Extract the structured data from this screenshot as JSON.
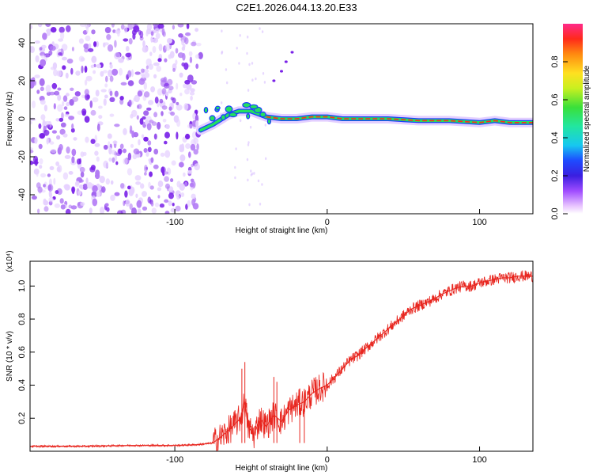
{
  "title": "C2E1.2026.044.13.20.E33",
  "colors": {
    "snr_line": "#e8261f",
    "signal_core": "#ff2a1a",
    "signal_mid": "#22e060",
    "signal_edge": "#1a3cff",
    "noise": "#7a22e8"
  },
  "chart_data": [
    {
      "type": "heatmap",
      "title": "C2E1.2026.044.13.20.E33",
      "xlabel": "Height of straight line (km)",
      "ylabel": "Frequency (Hz)",
      "xlim": [
        -195,
        135
      ],
      "ylim": [
        -50,
        50
      ],
      "xticks": [
        -100,
        0,
        100
      ],
      "xtick_labels": [
        "-100",
        "0",
        "100"
      ],
      "yticks": [
        -40,
        -20,
        0,
        20,
        40
      ],
      "ytick_labels": [
        "-40",
        "-20",
        "0",
        "20",
        "40"
      ],
      "colorbar": {
        "label": "Normalized spectral amplitude",
        "range": [
          0,
          1
        ],
        "ticks": [
          0.0,
          0.2,
          0.4,
          0.6,
          0.8
        ],
        "tick_labels": [
          "0.0",
          "0.2",
          "0.4",
          "0.6",
          "0.8"
        ]
      },
      "noise_region": {
        "x_start": -195,
        "x_end": -83
      },
      "signal_track": {
        "x": [
          -83,
          -75,
          -65,
          -58,
          -50,
          -40,
          -30,
          -20,
          -10,
          0,
          10,
          20,
          40,
          60,
          80,
          100,
          110,
          120,
          135
        ],
        "freq": [
          -6,
          -3,
          2,
          4,
          4,
          1,
          0,
          0,
          1,
          1,
          0,
          0,
          0,
          -1,
          -1,
          -2,
          -1,
          -2,
          -2
        ]
      }
    },
    {
      "type": "line",
      "xlabel": "Height of straight line (km)",
      "ylabel": "SNR (10 * v/v)",
      "y_scale_label": "(x10⁴)",
      "xlim": [
        -195,
        135
      ],
      "ylim": [
        0,
        1.15
      ],
      "xticks": [
        -100,
        0,
        100
      ],
      "xtick_labels": [
        "-100",
        "0",
        "100"
      ],
      "yticks": [
        0.2,
        0.4,
        0.6,
        0.8,
        1.0
      ],
      "ytick_labels": [
        "0.2",
        "0.4",
        "0.6",
        "0.8",
        "1.0"
      ],
      "series": [
        {
          "name": "SNR",
          "x": [
            -195,
            -160,
            -130,
            -100,
            -85,
            -75,
            -68,
            -62,
            -57,
            -54,
            -52,
            -48,
            -44,
            -40,
            -35,
            -30,
            -25,
            -20,
            -15,
            -10,
            -5,
            0,
            5,
            10,
            15,
            20,
            25,
            30,
            35,
            40,
            45,
            50,
            55,
            60,
            65,
            70,
            75,
            80,
            85,
            90,
            95,
            100,
            105,
            110,
            115,
            120,
            125,
            130,
            135
          ],
          "y": [
            0.03,
            0.03,
            0.035,
            0.035,
            0.04,
            0.05,
            0.1,
            0.15,
            0.2,
            0.3,
            0.15,
            0.1,
            0.2,
            0.15,
            0.22,
            0.18,
            0.25,
            0.28,
            0.3,
            0.35,
            0.38,
            0.4,
            0.45,
            0.5,
            0.55,
            0.58,
            0.62,
            0.66,
            0.7,
            0.74,
            0.78,
            0.82,
            0.86,
            0.88,
            0.9,
            0.92,
            0.95,
            0.97,
            0.99,
            1.0,
            1.0,
            1.02,
            1.03,
            1.04,
            1.05,
            1.05,
            1.06,
            1.06,
            1.06
          ]
        }
      ]
    }
  ]
}
